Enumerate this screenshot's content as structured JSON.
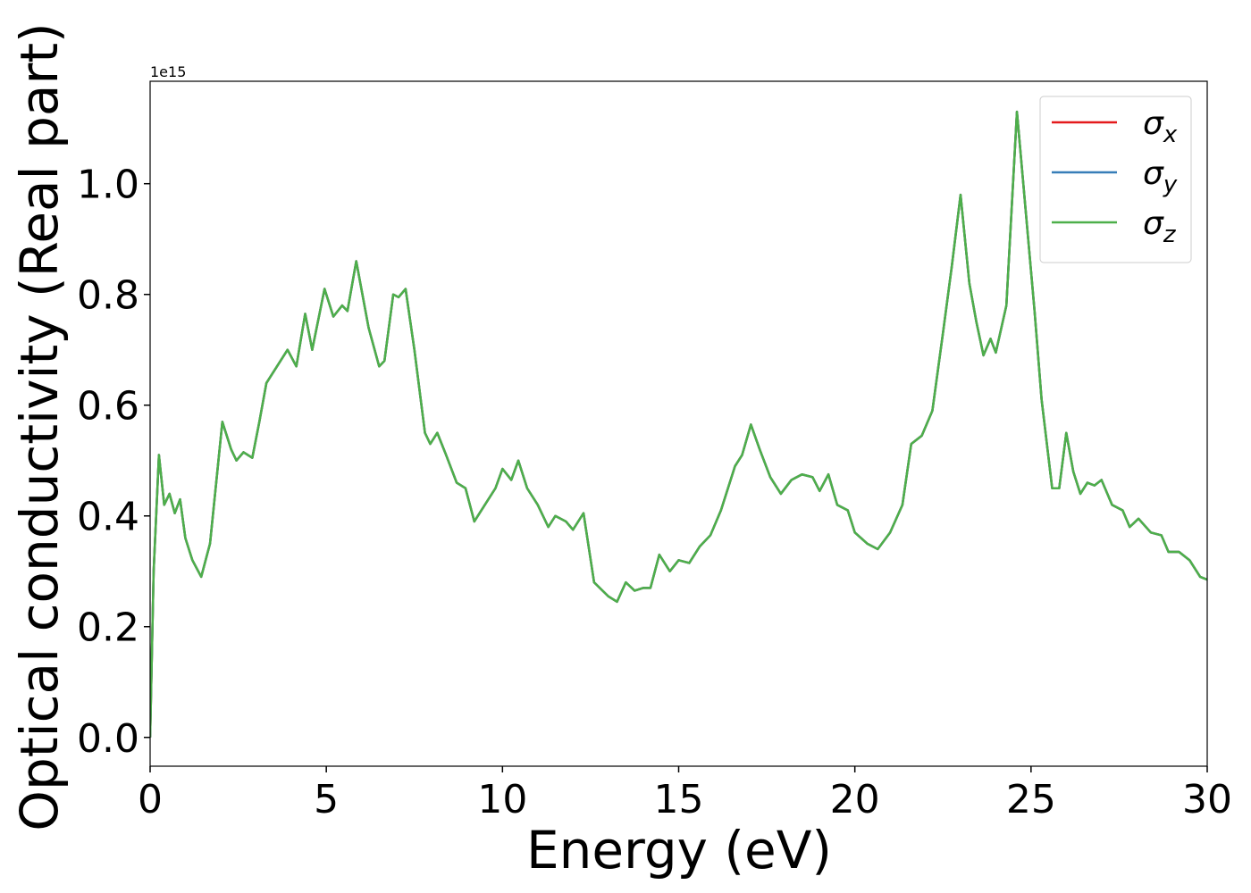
{
  "chart_data": {
    "type": "line",
    "x_label": "Energy (eV)",
    "y_label": "Optical conductivity (Real part)",
    "offset_text": "1e15",
    "x": [
      0,
      0.1,
      0.25,
      0.4,
      0.55,
      0.7,
      0.85,
      1.0,
      1.2,
      1.45,
      1.7,
      2.05,
      2.3,
      2.45,
      2.65,
      2.9,
      3.1,
      3.3,
      3.6,
      3.9,
      4.15,
      4.4,
      4.6,
      4.95,
      5.2,
      5.45,
      5.6,
      5.85,
      6.2,
      6.5,
      6.65,
      6.9,
      7.05,
      7.25,
      7.5,
      7.8,
      7.95,
      8.15,
      8.4,
      8.7,
      8.95,
      9.2,
      9.5,
      9.8,
      10.0,
      10.25,
      10.45,
      10.7,
      11.0,
      11.3,
      11.5,
      11.8,
      12.0,
      12.3,
      12.6,
      13.0,
      13.25,
      13.5,
      13.75,
      14.0,
      14.2,
      14.45,
      14.75,
      15.0,
      15.3,
      15.6,
      15.9,
      16.2,
      16.6,
      16.8,
      17.05,
      17.3,
      17.6,
      17.9,
      18.2,
      18.5,
      18.8,
      19.0,
      19.25,
      19.5,
      19.8,
      20.0,
      20.35,
      20.65,
      21.0,
      21.35,
      21.6,
      21.9,
      22.2,
      22.5,
      22.75,
      23.0,
      23.25,
      23.45,
      23.65,
      23.85,
      24.0,
      24.3,
      24.6,
      24.85,
      25.1,
      25.3,
      25.6,
      25.8,
      26.0,
      26.2,
      26.4,
      26.6,
      26.8,
      27.0,
      27.3,
      27.6,
      27.8,
      28.05,
      28.4,
      28.7,
      28.9,
      29.2,
      29.5,
      29.8,
      30.0
    ],
    "series": [
      {
        "name": "σx",
        "color": "#e41a1c",
        "values": [
          0,
          0.3,
          0.51,
          0.42,
          0.44,
          0.405,
          0.43,
          0.36,
          0.32,
          0.29,
          0.35,
          0.57,
          0.52,
          0.5,
          0.515,
          0.505,
          0.57,
          0.64,
          0.67,
          0.7,
          0.67,
          0.765,
          0.7,
          0.81,
          0.76,
          0.78,
          0.77,
          0.86,
          0.74,
          0.67,
          0.68,
          0.8,
          0.795,
          0.81,
          0.7,
          0.55,
          0.53,
          0.55,
          0.51,
          0.46,
          0.45,
          0.39,
          0.42,
          0.45,
          0.485,
          0.465,
          0.5,
          0.45,
          0.42,
          0.38,
          0.4,
          0.39,
          0.375,
          0.405,
          0.28,
          0.255,
          0.245,
          0.28,
          0.265,
          0.27,
          0.27,
          0.33,
          0.3,
          0.32,
          0.315,
          0.345,
          0.365,
          0.41,
          0.49,
          0.51,
          0.565,
          0.52,
          0.47,
          0.44,
          0.465,
          0.475,
          0.47,
          0.445,
          0.475,
          0.42,
          0.41,
          0.37,
          0.35,
          0.34,
          0.37,
          0.42,
          0.53,
          0.545,
          0.59,
          0.73,
          0.85,
          0.98,
          0.82,
          0.75,
          0.69,
          0.72,
          0.695,
          0.78,
          1.13,
          0.95,
          0.77,
          0.61,
          0.45,
          0.45,
          0.55,
          0.48,
          0.44,
          0.46,
          0.455,
          0.465,
          0.42,
          0.41,
          0.38,
          0.395,
          0.37,
          0.365,
          0.335,
          0.335,
          0.32,
          0.29,
          0.285
        ]
      },
      {
        "name": "σy",
        "color": "#377eb8",
        "values": [
          0,
          0.3,
          0.51,
          0.42,
          0.44,
          0.405,
          0.43,
          0.36,
          0.32,
          0.29,
          0.35,
          0.57,
          0.52,
          0.5,
          0.515,
          0.505,
          0.57,
          0.64,
          0.67,
          0.7,
          0.67,
          0.765,
          0.7,
          0.81,
          0.76,
          0.78,
          0.77,
          0.86,
          0.74,
          0.67,
          0.68,
          0.8,
          0.795,
          0.81,
          0.7,
          0.55,
          0.53,
          0.55,
          0.51,
          0.46,
          0.45,
          0.39,
          0.42,
          0.45,
          0.485,
          0.465,
          0.5,
          0.45,
          0.42,
          0.38,
          0.4,
          0.39,
          0.375,
          0.405,
          0.28,
          0.255,
          0.245,
          0.28,
          0.265,
          0.27,
          0.27,
          0.33,
          0.3,
          0.32,
          0.315,
          0.345,
          0.365,
          0.41,
          0.49,
          0.51,
          0.565,
          0.52,
          0.47,
          0.44,
          0.465,
          0.475,
          0.47,
          0.445,
          0.475,
          0.42,
          0.41,
          0.37,
          0.35,
          0.34,
          0.37,
          0.42,
          0.53,
          0.545,
          0.59,
          0.73,
          0.85,
          0.98,
          0.82,
          0.75,
          0.69,
          0.72,
          0.695,
          0.78,
          1.13,
          0.95,
          0.77,
          0.61,
          0.45,
          0.45,
          0.55,
          0.48,
          0.44,
          0.46,
          0.455,
          0.465,
          0.42,
          0.41,
          0.38,
          0.395,
          0.37,
          0.365,
          0.335,
          0.335,
          0.32,
          0.29,
          0.285
        ]
      },
      {
        "name": "σz",
        "color": "#4daf4a",
        "values": [
          0,
          0.3,
          0.51,
          0.42,
          0.44,
          0.405,
          0.43,
          0.36,
          0.32,
          0.29,
          0.35,
          0.57,
          0.52,
          0.5,
          0.515,
          0.505,
          0.57,
          0.64,
          0.67,
          0.7,
          0.67,
          0.765,
          0.7,
          0.81,
          0.76,
          0.78,
          0.77,
          0.86,
          0.74,
          0.67,
          0.68,
          0.8,
          0.795,
          0.81,
          0.7,
          0.55,
          0.53,
          0.55,
          0.51,
          0.46,
          0.45,
          0.39,
          0.42,
          0.45,
          0.485,
          0.465,
          0.5,
          0.45,
          0.42,
          0.38,
          0.4,
          0.39,
          0.375,
          0.405,
          0.28,
          0.255,
          0.245,
          0.28,
          0.265,
          0.27,
          0.27,
          0.33,
          0.3,
          0.32,
          0.315,
          0.345,
          0.365,
          0.41,
          0.49,
          0.51,
          0.565,
          0.52,
          0.47,
          0.44,
          0.465,
          0.475,
          0.47,
          0.445,
          0.475,
          0.42,
          0.41,
          0.37,
          0.35,
          0.34,
          0.37,
          0.42,
          0.53,
          0.545,
          0.59,
          0.73,
          0.85,
          0.98,
          0.82,
          0.75,
          0.69,
          0.72,
          0.695,
          0.78,
          1.13,
          0.95,
          0.77,
          0.61,
          0.45,
          0.45,
          0.55,
          0.48,
          0.44,
          0.46,
          0.455,
          0.465,
          0.42,
          0.41,
          0.38,
          0.395,
          0.37,
          0.365,
          0.335,
          0.335,
          0.32,
          0.29,
          0.285
        ]
      }
    ],
    "xlim": [
      0,
      30
    ],
    "xticks": [
      0,
      5,
      10,
      15,
      20,
      25,
      30
    ],
    "ylim": [
      -0.052,
      1.185
    ],
    "yticks": [
      {
        "value": 0,
        "label": "0.0"
      },
      0.2,
      0.4,
      0.6,
      0.8,
      {
        "value": 1,
        "label": "1.0"
      }
    ],
    "legend": "upper right",
    "grid": false
  }
}
